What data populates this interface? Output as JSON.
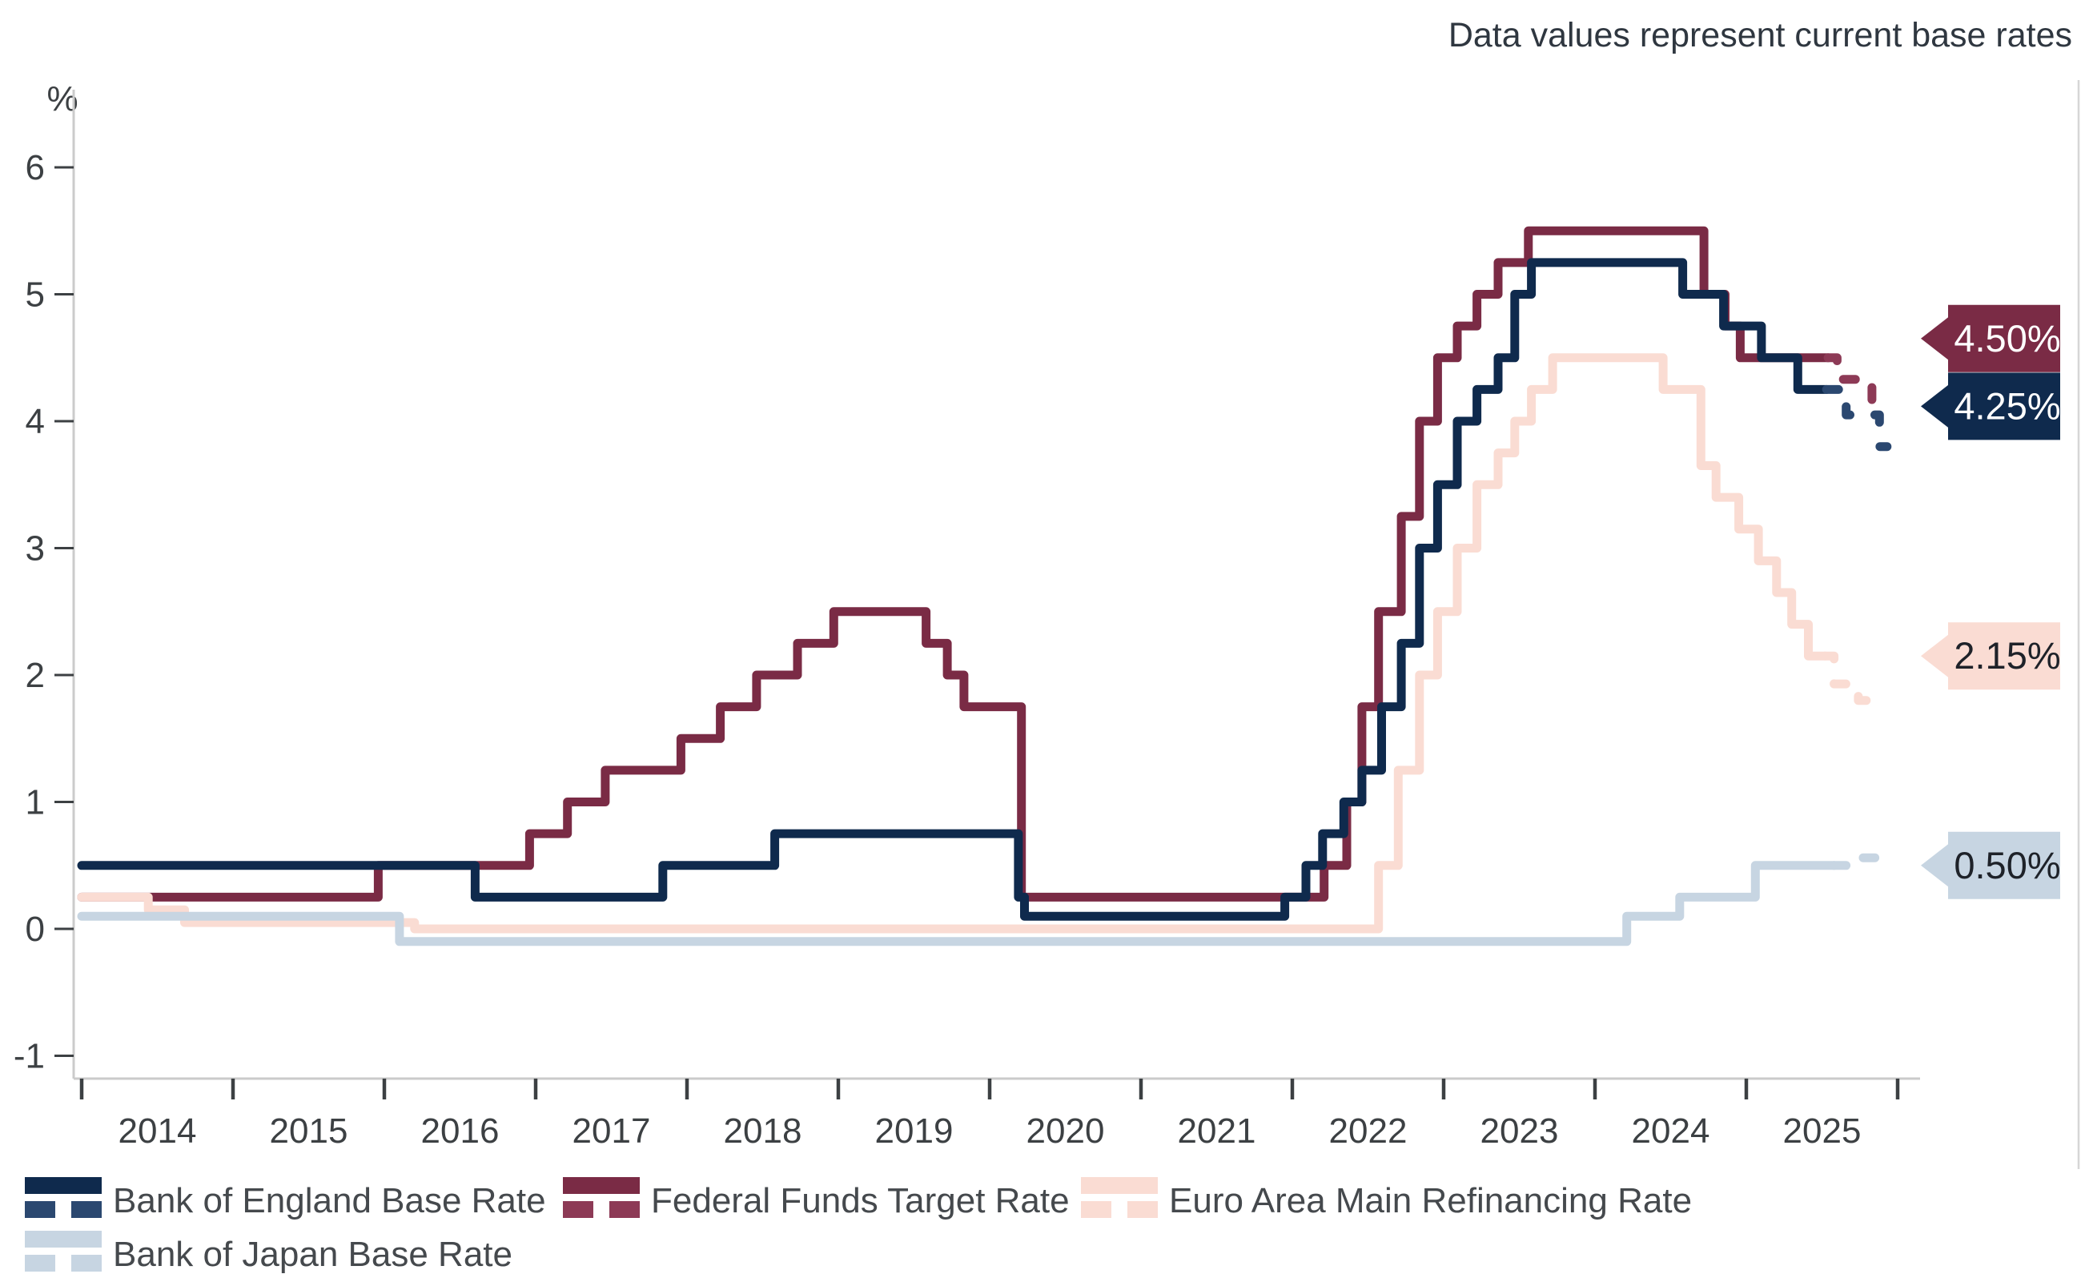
{
  "note": "Data values represent current base rates",
  "chart_data": {
    "type": "line",
    "step": true,
    "title": "",
    "ylabel": "%",
    "xlim": [
      2014,
      2026.15
    ],
    "ylim": [
      -1,
      6
    ],
    "x_tick_labels": [
      "2014",
      "2015",
      "2016",
      "2017",
      "2018",
      "2019",
      "2020",
      "2021",
      "2022",
      "2023",
      "2024",
      "2025"
    ],
    "y_ticks": [
      6,
      5,
      4,
      3,
      2,
      1,
      0,
      -1
    ],
    "grid": false,
    "legend_position": "bottom",
    "series": [
      {
        "name": "Bank of England Base Rate",
        "color": "#0f2a4d",
        "proj_color": "#2b4870",
        "current_value": "4.25%",
        "label_fg": "#ffffff",
        "points": [
          [
            2014,
            0.5
          ],
          [
            2016.6,
            0.25
          ],
          [
            2017.84,
            0.5
          ],
          [
            2018.58,
            0.75
          ],
          [
            2020.19,
            0.25
          ],
          [
            2020.23,
            0.1
          ],
          [
            2021.95,
            0.25
          ],
          [
            2022.09,
            0.5
          ],
          [
            2022.2,
            0.75
          ],
          [
            2022.34,
            1.0
          ],
          [
            2022.46,
            1.25
          ],
          [
            2022.59,
            1.75
          ],
          [
            2022.72,
            2.25
          ],
          [
            2022.84,
            3.0
          ],
          [
            2022.96,
            3.5
          ],
          [
            2023.09,
            4.0
          ],
          [
            2023.22,
            4.25
          ],
          [
            2023.36,
            4.5
          ],
          [
            2023.47,
            5.0
          ],
          [
            2023.58,
            5.25
          ],
          [
            2024.58,
            5.0
          ],
          [
            2024.85,
            4.75
          ],
          [
            2025.1,
            4.5
          ],
          [
            2025.34,
            4.25
          ]
        ],
        "solid_end": 2025.53,
        "proj_points": [
          [
            2025.53,
            4.25
          ],
          [
            2025.66,
            4.05
          ],
          [
            2025.88,
            3.8
          ]
        ],
        "proj_end": 2025.93
      },
      {
        "name": "Federal Funds Target Rate",
        "color": "#7a2b45",
        "proj_color": "#8d3a56",
        "current_value": "4.50%",
        "label_fg": "#ffffff",
        "points": [
          [
            2014,
            0.25
          ],
          [
            2015.96,
            0.5
          ],
          [
            2016.96,
            0.75
          ],
          [
            2017.21,
            1.0
          ],
          [
            2017.46,
            1.25
          ],
          [
            2017.96,
            1.5
          ],
          [
            2018.22,
            1.75
          ],
          [
            2018.46,
            2.0
          ],
          [
            2018.73,
            2.25
          ],
          [
            2018.97,
            2.5
          ],
          [
            2019.58,
            2.25
          ],
          [
            2019.72,
            2.0
          ],
          [
            2019.83,
            1.75
          ],
          [
            2020.21,
            0.25
          ],
          [
            2022.21,
            0.5
          ],
          [
            2022.36,
            1.0
          ],
          [
            2022.46,
            1.75
          ],
          [
            2022.57,
            2.5
          ],
          [
            2022.72,
            3.25
          ],
          [
            2022.84,
            4.0
          ],
          [
            2022.96,
            4.5
          ],
          [
            2023.09,
            4.75
          ],
          [
            2023.22,
            5.0
          ],
          [
            2023.36,
            5.25
          ],
          [
            2023.56,
            5.5
          ],
          [
            2024.72,
            5.0
          ],
          [
            2024.86,
            4.75
          ],
          [
            2024.96,
            4.5
          ]
        ],
        "solid_end": 2025.54,
        "proj_points": [
          [
            2025.54,
            4.5
          ],
          [
            2025.6,
            4.33
          ],
          [
            2025.83,
            4.08
          ]
        ],
        "proj_end": 2025.88
      },
      {
        "name": "Euro Area Main Refinancing Rate",
        "color": "#fadcd3",
        "proj_color": "#fadcd3",
        "current_value": "2.15%",
        "label_fg": "#1e2229",
        "points": [
          [
            2014,
            0.25
          ],
          [
            2014.44,
            0.15
          ],
          [
            2014.68,
            0.05
          ],
          [
            2016.2,
            0.0
          ],
          [
            2022.57,
            0.5
          ],
          [
            2022.7,
            1.25
          ],
          [
            2022.84,
            2.0
          ],
          [
            2022.96,
            2.5
          ],
          [
            2023.09,
            3.0
          ],
          [
            2023.22,
            3.5
          ],
          [
            2023.36,
            3.75
          ],
          [
            2023.47,
            4.0
          ],
          [
            2023.58,
            4.25
          ],
          [
            2023.72,
            4.5
          ],
          [
            2024.45,
            4.25
          ],
          [
            2024.7,
            3.65
          ],
          [
            2024.8,
            3.4
          ],
          [
            2024.95,
            3.15
          ],
          [
            2025.08,
            2.9
          ],
          [
            2025.2,
            2.65
          ],
          [
            2025.3,
            2.4
          ],
          [
            2025.41,
            2.15
          ]
        ],
        "solid_end": 2025.52,
        "proj_points": [
          [
            2025.52,
            2.15
          ],
          [
            2025.58,
            1.93
          ],
          [
            2025.74,
            1.8
          ]
        ],
        "proj_end": 2025.87
      },
      {
        "name": "Bank of Japan Base Rate",
        "color": "#c7d5e2",
        "proj_color": "#c7d5e2",
        "current_value": "0.50%",
        "label_fg": "#1e2229",
        "points": [
          [
            2014,
            0.1
          ],
          [
            2016.1,
            -0.1
          ],
          [
            2024.21,
            0.1
          ],
          [
            2024.56,
            0.25
          ],
          [
            2025.06,
            0.5
          ]
        ],
        "solid_end": 2025.58,
        "proj_points": [
          [
            2025.58,
            0.5
          ],
          [
            2025.7,
            0.56
          ]
        ],
        "proj_end": 2025.85
      }
    ]
  }
}
